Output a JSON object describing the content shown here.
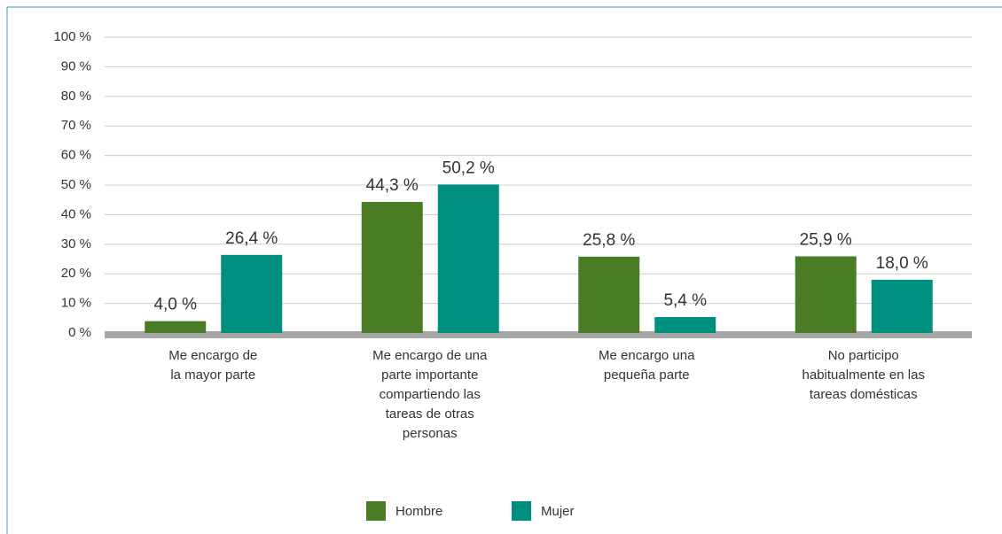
{
  "chart_data": {
    "type": "bar",
    "categories": [
      [
        "Me encargo de",
        "la mayor parte"
      ],
      [
        "Me encargo de una",
        "parte importante",
        "compartiendo las",
        "tareas de otras",
        "personas"
      ],
      [
        "Me encargo una",
        "pequeña parte"
      ],
      [
        "No participo",
        "habitualmente en las",
        "tareas domésticas"
      ]
    ],
    "series": [
      {
        "name": "Hombre",
        "color": "#4a7c26",
        "values": [
          4.0,
          44.3,
          25.8,
          25.9
        ],
        "value_labels": [
          "4,0 %",
          "44,3 %",
          "25,8 %",
          "25,9 %"
        ]
      },
      {
        "name": "Mujer",
        "color": "#008f7f",
        "values": [
          26.4,
          50.2,
          5.4,
          18.0
        ],
        "value_labels": [
          "26,4 %",
          "50,2 %",
          "5,4 %",
          "18,0 %"
        ]
      }
    ],
    "ylim": [
      0,
      100
    ],
    "yticks": [
      {
        "value": 0,
        "label": "0 %"
      },
      {
        "value": 10,
        "label": "10 %"
      },
      {
        "value": 20,
        "label": "20 %"
      },
      {
        "value": 30,
        "label": "30 %"
      },
      {
        "value": 40,
        "label": "40 %"
      },
      {
        "value": 50,
        "label": "50 %"
      },
      {
        "value": 60,
        "label": "60 %"
      },
      {
        "value": 70,
        "label": "70 %"
      },
      {
        "value": 80,
        "label": "80 %"
      },
      {
        "value": 90,
        "label": "90 %"
      },
      {
        "value": 100,
        "label": "100 %"
      }
    ],
    "grid": true,
    "legend": "bottom"
  }
}
